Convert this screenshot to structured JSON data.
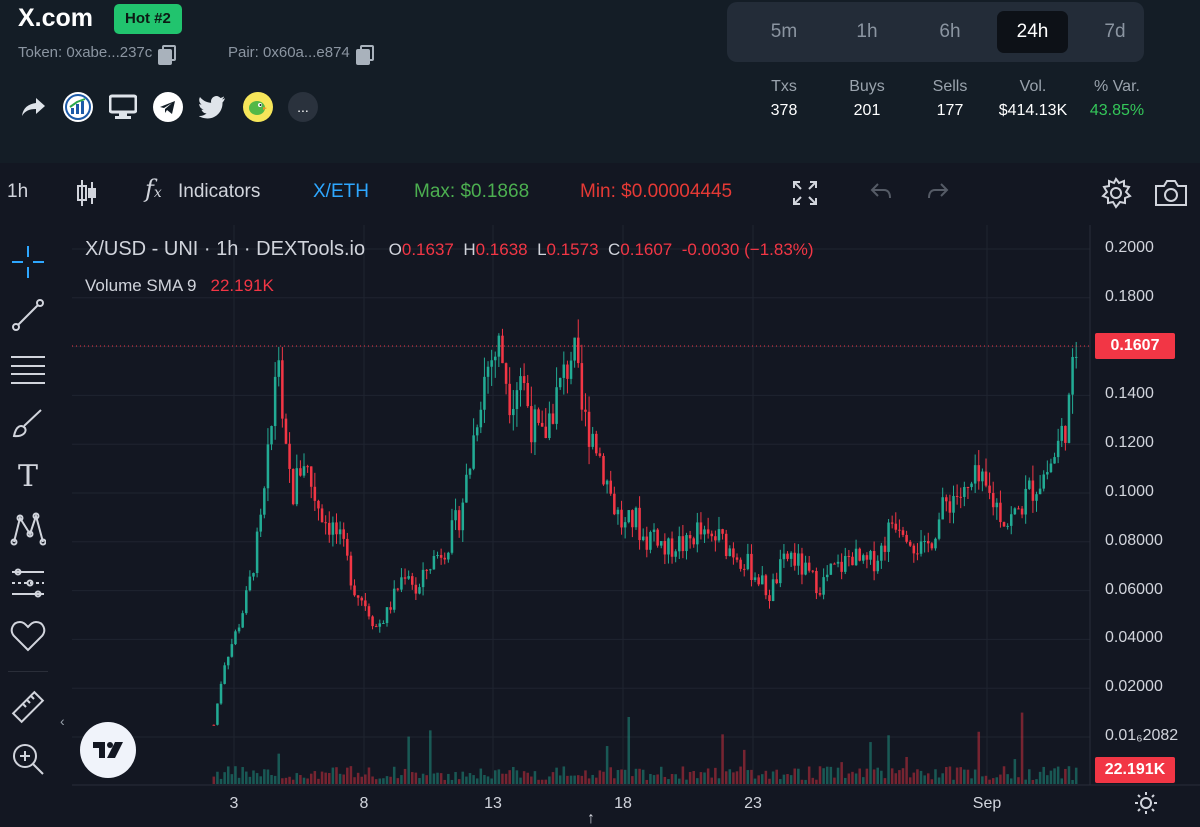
{
  "header": {
    "title": "X.com",
    "badge": "Hot #2",
    "token_label": "Token: 0xabe...237c",
    "pair_label": "Pair: 0x60a...e874",
    "social_icons": [
      "share-icon",
      "chart-logo-icon",
      "website-icon",
      "telegram-icon",
      "twitter-icon",
      "parrot-logo-icon",
      "more-icon"
    ],
    "more_label": "..."
  },
  "timeframes": {
    "options": [
      "5m",
      "1h",
      "6h",
      "24h",
      "7d"
    ],
    "selected": "24h"
  },
  "stats": [
    {
      "label": "Txs",
      "value": "378"
    },
    {
      "label": "Buys",
      "value": "201"
    },
    {
      "label": "Sells",
      "value": "177"
    },
    {
      "label": "Vol.",
      "value": "$414.13K"
    },
    {
      "label": "% Var.",
      "value": "43.85%"
    }
  ],
  "colors": {
    "up": "#22ab94",
    "down": "#f23645",
    "green_text": "#34c759",
    "max_green": "#4caf50",
    "min_red": "#e53935",
    "pair_blue": "#2ea7ff"
  },
  "toolbar": {
    "interval": "1h",
    "indicators": "Indicators",
    "pair": "X/ETH",
    "max": "Max: $0.1868",
    "min": "Min: $0.00004445"
  },
  "chart_legend": {
    "symbol": "X/USD - UNI · 1h · DEXTools.io",
    "o_label": "O",
    "o": "0.1637",
    "h_label": "H",
    "h": "0.1638",
    "l_label": "L",
    "l": "0.1573",
    "c_label": "C",
    "c": "0.1607",
    "change": "-0.0030 (−1.83%)",
    "volume_label": "Volume SMA 9",
    "volume_value": "22.191K"
  },
  "chart_data": {
    "type": "candlestick",
    "y_ticks": [
      "0.2000",
      "0.1800",
      "0.1600",
      "0.1400",
      "0.1200",
      "0.1000",
      "0.08000",
      "0.06000",
      "0.04000",
      "0.02000",
      "0.01₆2082"
    ],
    "x_ticks": [
      "3",
      "8",
      "13",
      "18",
      "23",
      "Sep"
    ],
    "last_price": "0.1607",
    "volume_tag": "22.191K",
    "ylim": [
      0.0,
      0.2
    ],
    "close_path": [
      [
        0.0,
        0.005
      ],
      [
        0.3,
        0.03
      ],
      [
        0.7,
        0.045
      ],
      [
        1.0,
        0.06
      ],
      [
        1.4,
        0.09
      ],
      [
        1.7,
        0.13
      ],
      [
        1.85,
        0.168
      ],
      [
        2.0,
        0.12
      ],
      [
        2.3,
        0.1
      ],
      [
        2.6,
        0.115
      ],
      [
        2.9,
        0.1
      ],
      [
        3.2,
        0.09
      ],
      [
        3.5,
        0.085
      ],
      [
        3.8,
        0.075
      ],
      [
        4.1,
        0.06
      ],
      [
        4.4,
        0.055
      ],
      [
        4.7,
        0.045
      ],
      [
        5.0,
        0.05
      ],
      [
        5.3,
        0.06
      ],
      [
        5.6,
        0.07
      ],
      [
        5.9,
        0.058
      ],
      [
        6.2,
        0.07
      ],
      [
        6.5,
        0.075
      ],
      [
        6.8,
        0.08
      ],
      [
        7.1,
        0.09
      ],
      [
        7.4,
        0.11
      ],
      [
        7.7,
        0.14
      ],
      [
        8.0,
        0.155
      ],
      [
        8.3,
        0.16
      ],
      [
        8.6,
        0.14
      ],
      [
        8.9,
        0.15
      ],
      [
        9.2,
        0.13
      ],
      [
        9.5,
        0.12
      ],
      [
        9.8,
        0.135
      ],
      [
        10.1,
        0.145
      ],
      [
        10.4,
        0.16
      ],
      [
        10.7,
        0.13
      ],
      [
        11.0,
        0.125
      ],
      [
        11.3,
        0.11
      ],
      [
        11.6,
        0.095
      ],
      [
        11.9,
        0.085
      ],
      [
        12.2,
        0.09
      ],
      [
        12.5,
        0.08
      ],
      [
        12.8,
        0.085
      ],
      [
        13.1,
        0.075
      ],
      [
        13.4,
        0.08
      ],
      [
        13.7,
        0.078
      ],
      [
        14.0,
        0.085
      ],
      [
        14.3,
        0.08
      ],
      [
        14.6,
        0.082
      ],
      [
        14.9,
        0.078
      ],
      [
        15.2,
        0.075
      ],
      [
        15.5,
        0.07
      ],
      [
        15.8,
        0.065
      ],
      [
        16.1,
        0.058
      ],
      [
        16.4,
        0.068
      ],
      [
        16.7,
        0.075
      ],
      [
        17.0,
        0.07
      ],
      [
        17.3,
        0.065
      ],
      [
        17.6,
        0.062
      ],
      [
        17.9,
        0.068
      ],
      [
        18.2,
        0.07
      ],
      [
        18.5,
        0.075
      ],
      [
        18.8,
        0.07
      ],
      [
        19.1,
        0.072
      ],
      [
        19.4,
        0.078
      ],
      [
        19.7,
        0.09
      ],
      [
        20.0,
        0.088
      ],
      [
        20.3,
        0.08
      ],
      [
        20.6,
        0.075
      ],
      [
        20.9,
        0.085
      ],
      [
        21.2,
        0.095
      ],
      [
        21.5,
        0.1
      ],
      [
        21.8,
        0.098
      ],
      [
        22.1,
        0.105
      ],
      [
        22.4,
        0.1
      ],
      [
        22.7,
        0.095
      ],
      [
        23.0,
        0.088
      ],
      [
        23.3,
        0.092
      ],
      [
        23.6,
        0.1
      ],
      [
        23.9,
        0.105
      ],
      [
        24.2,
        0.11
      ],
      [
        24.5,
        0.12
      ],
      [
        24.8,
        0.135
      ],
      [
        25.0,
        0.16
      ]
    ]
  }
}
